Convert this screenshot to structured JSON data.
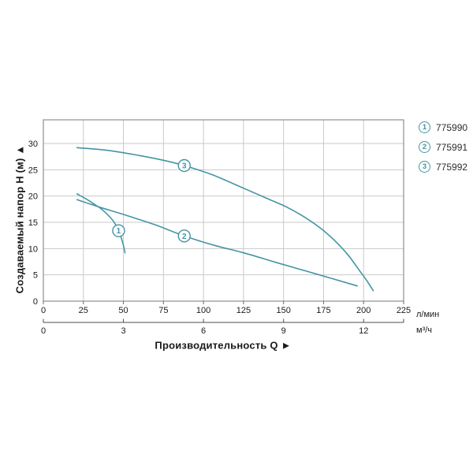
{
  "chart_data": {
    "type": "line",
    "title": "",
    "grid": true,
    "legend_position": "top-right",
    "x_axis": {
      "label": "Производительность Q ►",
      "primary_unit": "л/мин",
      "primary_ticks": [
        0,
        25,
        50,
        75,
        100,
        125,
        150,
        175,
        200,
        225
      ],
      "primary_range": [
        0,
        225
      ],
      "secondary_unit": "м³/ч",
      "secondary_ticks": [
        0,
        3,
        6,
        9,
        12
      ]
    },
    "y_axis": {
      "label": "Создаваемый напор Н (м) ▲",
      "ticks": [
        0,
        5,
        10,
        15,
        20,
        25,
        30
      ],
      "range": [
        0,
        34.5
      ]
    },
    "series": [
      {
        "badge": "1",
        "name": "775990",
        "badge_at": [
          47,
          13.4
        ],
        "points": [
          [
            21,
            20.4
          ],
          [
            27,
            19.4
          ],
          [
            32,
            18.4
          ],
          [
            36,
            17.6
          ],
          [
            40,
            16.5
          ],
          [
            44,
            15.1
          ],
          [
            47,
            13.4
          ],
          [
            49.5,
            11.2
          ],
          [
            51,
            9.2
          ]
        ]
      },
      {
        "badge": "2",
        "name": "775991",
        "badge_at": [
          88,
          12.4
        ],
        "points": [
          [
            21,
            19.3
          ],
          [
            35,
            17.9
          ],
          [
            50,
            16.5
          ],
          [
            70,
            14.5
          ],
          [
            88,
            12.4
          ],
          [
            107,
            10.6
          ],
          [
            125,
            9.2
          ],
          [
            145,
            7.4
          ],
          [
            170,
            5.2
          ],
          [
            196,
            2.9
          ]
        ]
      },
      {
        "badge": "3",
        "name": "775992",
        "badge_at": [
          88,
          25.8
        ],
        "points": [
          [
            21,
            29.2
          ],
          [
            40,
            28.7
          ],
          [
            60,
            27.7
          ],
          [
            75,
            26.8
          ],
          [
            88,
            25.8
          ],
          [
            105,
            24.1
          ],
          [
            125,
            21.5
          ],
          [
            140,
            19.5
          ],
          [
            152,
            17.9
          ],
          [
            163,
            16.0
          ],
          [
            173,
            13.9
          ],
          [
            182,
            11.5
          ],
          [
            190,
            8.9
          ],
          [
            197,
            6.0
          ],
          [
            202,
            3.9
          ],
          [
            206,
            2.0
          ]
        ]
      }
    ]
  },
  "legend": {
    "items": [
      {
        "num": "1",
        "label": "775990"
      },
      {
        "num": "2",
        "label": "775991"
      },
      {
        "num": "3",
        "label": "775992"
      }
    ]
  },
  "colors": {
    "curve": "#4594a3",
    "grid": "#c9c9c9",
    "frame": "#8f8f8f",
    "tick": "#6b6b6b",
    "axis2": "#4d4d4d",
    "text": "#1a1a1a",
    "background": "#ffffff"
  }
}
